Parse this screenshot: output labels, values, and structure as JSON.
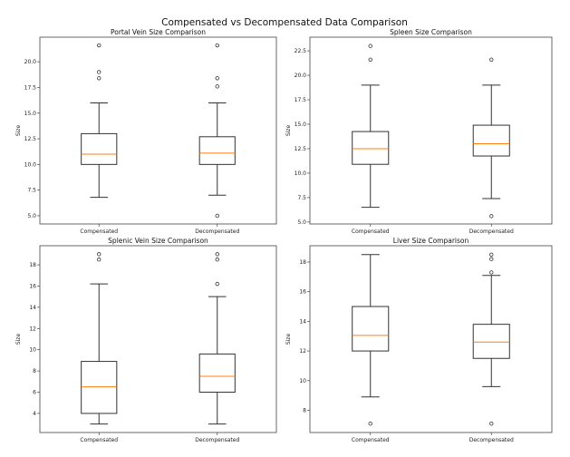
{
  "title": "Compensated vs Decompensated Data Comparison",
  "colors": {
    "box": "#333333",
    "median": "#ff7f0e",
    "frame": "#444444"
  },
  "chart_data": [
    {
      "type": "box",
      "title": "Portal Vein Size Comparison",
      "ylabel": "Size",
      "categories": [
        "Compensated",
        "Decompensated"
      ],
      "ylim": [
        4.2,
        22.4
      ],
      "yticks": [
        5,
        7.5,
        10,
        12.5,
        15,
        17.5,
        20
      ],
      "ytick_labels": [
        "5.0",
        "7.5",
        "10.0",
        "12.5",
        "15.0",
        "17.5",
        "20.0"
      ],
      "boxes": [
        {
          "whislo": 6.8,
          "q1": 10,
          "med": 11,
          "q3": 13,
          "whishi": 16,
          "fliers": [
            18.4,
            19,
            21.6
          ]
        },
        {
          "whislo": 7,
          "q1": 10,
          "med": 11.1,
          "q3": 12.7,
          "whishi": 16,
          "fliers": [
            5.0,
            17.6,
            18.4,
            21.6
          ]
        }
      ]
    },
    {
      "type": "box",
      "title": "Spleen Size Comparison",
      "ylabel": "Size",
      "categories": [
        "Compensated",
        "Decompensated"
      ],
      "ylim": [
        4.8,
        23.9
      ],
      "yticks": [
        5,
        7.5,
        10,
        12.5,
        15,
        17.5,
        20,
        22.5
      ],
      "ytick_labels": [
        "5.0",
        "7.5",
        "10.0",
        "12.5",
        "15.0",
        "17.5",
        "20.0",
        "22.5"
      ],
      "boxes": [
        {
          "whislo": 6.5,
          "q1": 10.9,
          "med": 12.5,
          "q3": 14.25,
          "whishi": 19,
          "fliers": [
            21.6,
            23
          ]
        },
        {
          "whislo": 7.4,
          "q1": 11.75,
          "med": 13.0,
          "q3": 14.9,
          "whishi": 19,
          "fliers": [
            5.6,
            21.6
          ]
        }
      ]
    },
    {
      "type": "box",
      "title": "Splenic Vein Size Comparison",
      "ylabel": "Size",
      "categories": [
        "Compensated",
        "Decompensated"
      ],
      "ylim": [
        2.2,
        19.8
      ],
      "yticks": [
        4,
        6,
        8,
        10,
        12,
        14,
        16,
        18
      ],
      "ytick_labels": [
        "4",
        "6",
        "8",
        "10",
        "12",
        "14",
        "16",
        "18"
      ],
      "boxes": [
        {
          "whislo": 3,
          "q1": 4,
          "med": 6.5,
          "q3": 8.9,
          "whishi": 16.2,
          "fliers": [
            18.5,
            19
          ]
        },
        {
          "whislo": 3,
          "q1": 6,
          "med": 7.5,
          "q3": 9.6,
          "whishi": 15,
          "fliers": [
            16.2,
            18.5,
            19
          ]
        }
      ]
    },
    {
      "type": "box",
      "title": "Liver Size Comparison",
      "ylabel": "Size",
      "categories": [
        "Compensated",
        "Decompensated"
      ],
      "ylim": [
        6.5,
        19.1
      ],
      "yticks": [
        8,
        10,
        12,
        14,
        16,
        18
      ],
      "ytick_labels": [
        "8",
        "10",
        "12",
        "14",
        "16",
        "18"
      ],
      "boxes": [
        {
          "whislo": 8.9,
          "q1": 12,
          "med": 13.05,
          "q3": 15,
          "whishi": 18.5,
          "fliers": [
            7.1
          ]
        },
        {
          "whislo": 9.6,
          "q1": 11.5,
          "med": 12.6,
          "q3": 13.8,
          "whishi": 17.1,
          "fliers": [
            7.1,
            17.3,
            18.2,
            18.5
          ]
        }
      ]
    }
  ]
}
